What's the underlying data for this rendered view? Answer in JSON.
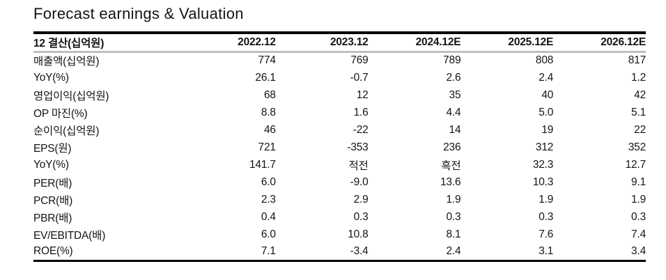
{
  "colors": {
    "background": "#ffffff",
    "text": "#141414",
    "border_top": "#000000",
    "border_bottom": "#000000",
    "header_rule": "#bfbfbf"
  },
  "chart_data": {
    "type": "table",
    "title": "Forecast earnings & Valuation",
    "columns": [
      "12 결산(십억원)",
      "2022.12",
      "2023.12",
      "2024.12E",
      "2025.12E",
      "2026.12E"
    ],
    "rows": [
      {
        "label": "매출액(십억원)",
        "bold_label": true,
        "bold_values": true,
        "values": [
          "774",
          "769",
          "789",
          "808",
          "817"
        ]
      },
      {
        "label": "YoY(%)",
        "bold_label": false,
        "bold_values": false,
        "values": [
          "26.1",
          "-0.7",
          "2.6",
          "2.4",
          "1.2"
        ]
      },
      {
        "label": "영업이익(십억원)",
        "bold_label": true,
        "bold_values": true,
        "values": [
          "68",
          "12",
          "35",
          "40",
          "42"
        ]
      },
      {
        "label": "OP 마진(%)",
        "bold_label": false,
        "bold_values": false,
        "values": [
          "8.8",
          "1.6",
          "4.4",
          "5.0",
          "5.1"
        ]
      },
      {
        "label": "순이익(십억원)",
        "bold_label": true,
        "bold_values": true,
        "values": [
          "46",
          "-22",
          "14",
          "19",
          "22"
        ]
      },
      {
        "label": "EPS(원)",
        "bold_label": true,
        "bold_values": false,
        "values": [
          "721",
          "-353",
          "236",
          "312",
          "352"
        ]
      },
      {
        "label": "YoY(%)",
        "bold_label": false,
        "bold_values": false,
        "values": [
          "141.7",
          "적전",
          "흑전",
          "32.3",
          "12.7"
        ]
      },
      {
        "label": "PER(배)",
        "bold_label": true,
        "bold_values": false,
        "values": [
          "6.0",
          "-9.0",
          "13.6",
          "10.3",
          "9.1"
        ]
      },
      {
        "label": "PCR(배)",
        "bold_label": true,
        "bold_values": false,
        "values": [
          "2.3",
          "2.9",
          "1.9",
          "1.9",
          "1.9"
        ]
      },
      {
        "label": "PBR(배)",
        "bold_label": true,
        "bold_values": false,
        "values": [
          "0.4",
          "0.3",
          "0.3",
          "0.3",
          "0.3"
        ]
      },
      {
        "label": "EV/EBITDA(배)",
        "bold_label": true,
        "bold_values": false,
        "values": [
          "6.0",
          "10.8",
          "8.1",
          "7.6",
          "7.4"
        ]
      },
      {
        "label": "ROE(%)",
        "bold_label": true,
        "bold_values": false,
        "values": [
          "7.1",
          "-3.4",
          "2.4",
          "3.1",
          "3.4"
        ]
      }
    ]
  }
}
